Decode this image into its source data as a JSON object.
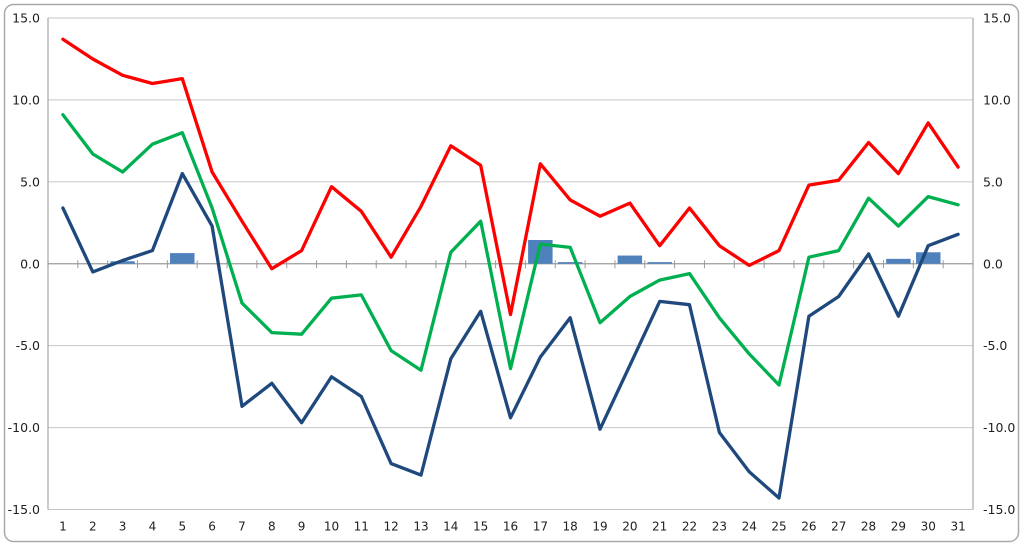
{
  "chart_data": {
    "type": "combo",
    "title": "",
    "xlabel": "",
    "ylabel": "",
    "categories": [
      "1",
      "2",
      "3",
      "4",
      "5",
      "6",
      "7",
      "8",
      "9",
      "10",
      "11",
      "12",
      "13",
      "14",
      "15",
      "16",
      "17",
      "18",
      "19",
      "20",
      "21",
      "22",
      "23",
      "24",
      "25",
      "26",
      "27",
      "28",
      "29",
      "30",
      "31"
    ],
    "series": [
      {
        "name": "upper-red-line",
        "type": "line",
        "color": "#FE0000",
        "values": [
          13.7,
          12.5,
          11.5,
          11.0,
          11.3,
          5.6,
          2.6,
          -0.3,
          0.8,
          4.7,
          3.2,
          0.4,
          3.5,
          7.2,
          6.0,
          -3.1,
          6.1,
          3.9,
          2.9,
          3.7,
          1.1,
          3.4,
          1.1,
          -0.1,
          0.8,
          4.8,
          5.1,
          7.4,
          5.5,
          8.6,
          5.9
        ]
      },
      {
        "name": "middle-green-line",
        "type": "line",
        "color": "#00B050",
        "values": [
          9.1,
          6.7,
          5.6,
          7.3,
          8.0,
          3.4,
          -2.4,
          -4.2,
          -4.3,
          -2.1,
          -1.9,
          -5.3,
          -6.5,
          0.7,
          2.6,
          -6.4,
          1.2,
          1.0,
          -3.6,
          -2.0,
          -1.0,
          -0.6,
          -3.3,
          -5.5,
          -7.4,
          0.4,
          0.8,
          4.0,
          2.3,
          4.1,
          3.6
        ]
      },
      {
        "name": "lower-navy-line",
        "type": "line",
        "color": "#1F497D",
        "values": [
          3.4,
          -0.5,
          0.2,
          0.8,
          5.5,
          2.3,
          -8.7,
          -7.3,
          -9.7,
          -6.9,
          -8.1,
          -12.2,
          -12.9,
          -5.8,
          -2.9,
          -9.4,
          -5.7,
          -3.3,
          -10.1,
          -6.2,
          -2.3,
          -2.5,
          -10.3,
          -12.7,
          -14.3,
          -3.2,
          -2.0,
          0.6,
          -3.2,
          1.1,
          1.8
        ]
      },
      {
        "name": "blue-bars",
        "type": "bar",
        "color": "#4F81BD",
        "values": [
          null,
          null,
          0.15,
          null,
          0.65,
          null,
          null,
          null,
          null,
          null,
          null,
          null,
          null,
          null,
          null,
          null,
          1.45,
          0.1,
          null,
          0.5,
          0.1,
          null,
          null,
          null,
          null,
          null,
          null,
          null,
          0.3,
          0.7,
          null
        ]
      }
    ],
    "y_axis": {
      "min": -15.0,
      "max": 15.0,
      "step": 5.0,
      "tick_labels": [
        "15.0",
        "10.0",
        "5.0",
        "0.0",
        "-5.0",
        "-10.0",
        "-15.0"
      ],
      "sides": "left-and-right"
    },
    "x_axis": {
      "tick_labels": [
        "1",
        "2",
        "3",
        "4",
        "5",
        "6",
        "7",
        "8",
        "9",
        "10",
        "11",
        "12",
        "13",
        "14",
        "15",
        "16",
        "17",
        "18",
        "19",
        "20",
        "21",
        "22",
        "23",
        "24",
        "25",
        "26",
        "27",
        "28",
        "29",
        "30",
        "31"
      ],
      "crosses_at": 0.0
    },
    "legend": "none",
    "grid": "horizontal-major",
    "colors": {
      "gridline": "#C6C6C6",
      "axis_line": "#A6A6A6",
      "zero_axis": "#9B9B9B",
      "chart_border": "#A9A9A9",
      "label_text": "#1f1f1f",
      "background": "#FFFFFF"
    }
  }
}
